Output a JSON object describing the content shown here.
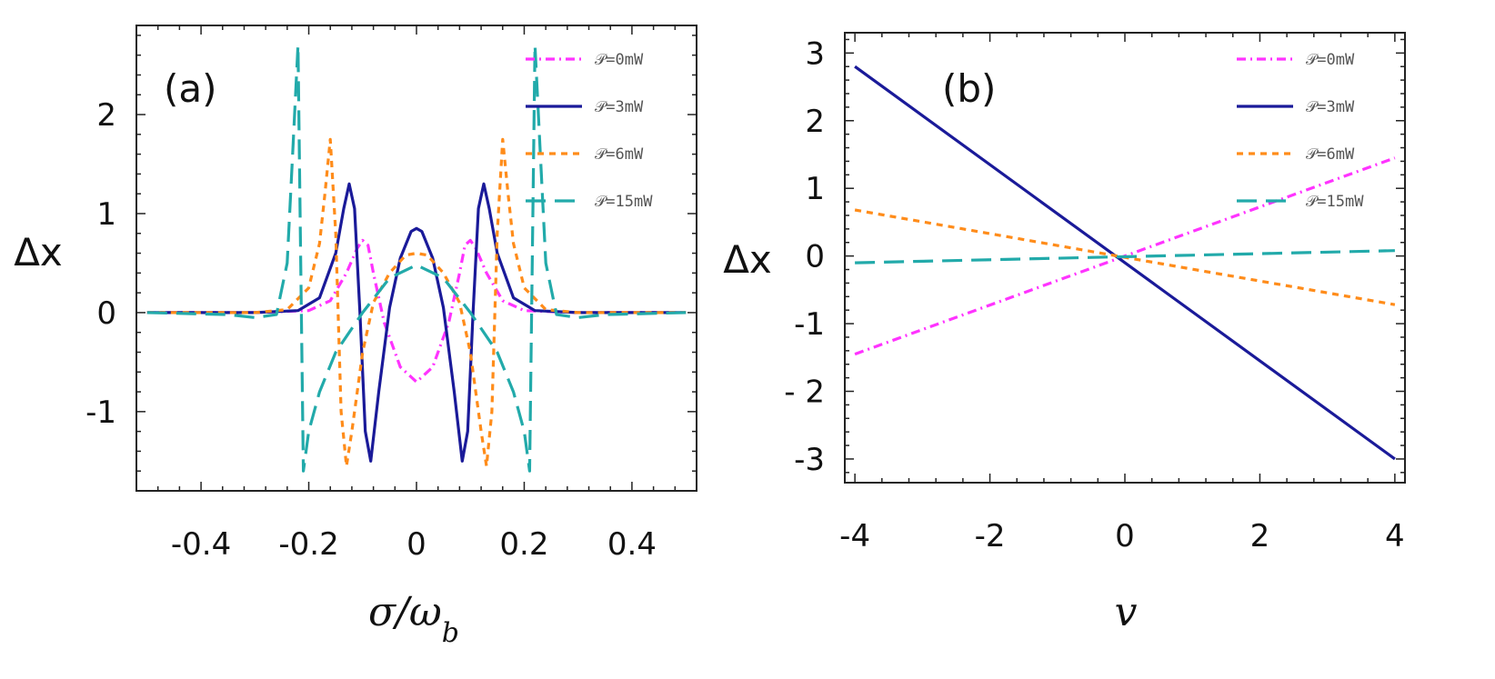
{
  "chart_data": [
    {
      "type": "line",
      "panel_label": "(a)",
      "xlabel": "σ/ω",
      "xlabel_sub": "b",
      "ylabel": "Δx",
      "xlim": [
        -0.52,
        0.52
      ],
      "ylim": [
        -1.8,
        2.9
      ],
      "xticks": [
        -0.4,
        -0.2,
        0,
        0.2,
        0.4
      ],
      "xtick_labels": [
        "-0.4",
        "-0.2",
        "0",
        "0.2",
        "0.4"
      ],
      "yticks": [
        -1,
        0,
        1,
        2
      ],
      "ytick_labels": [
        "-1",
        "0",
        "1",
        "2"
      ],
      "legend_position": "top-right",
      "series": [
        {
          "name": "𝒫=0mW",
          "color": "#ff33ff",
          "style": "dashdot",
          "x": [
            -0.5,
            -0.3,
            -0.2,
            -0.16,
            -0.13,
            -0.11,
            -0.1,
            -0.09,
            -0.08,
            -0.06,
            -0.03,
            0.0,
            0.03,
            0.06,
            0.08,
            0.09,
            0.1,
            0.11,
            0.13,
            0.16,
            0.2,
            0.3,
            0.5
          ],
          "y": [
            0.0,
            0.0,
            0.02,
            0.12,
            0.4,
            0.65,
            0.73,
            0.68,
            0.4,
            -0.1,
            -0.55,
            -0.7,
            -0.55,
            -0.1,
            0.4,
            0.68,
            0.73,
            0.65,
            0.4,
            0.12,
            0.02,
            0.0,
            0.0
          ]
        },
        {
          "name": "𝒫=3mW",
          "color": "#1a1a99",
          "style": "solid",
          "x": [
            -0.5,
            -0.3,
            -0.22,
            -0.18,
            -0.15,
            -0.135,
            -0.125,
            -0.115,
            -0.105,
            -0.095,
            -0.085,
            -0.07,
            -0.05,
            -0.03,
            -0.01,
            0.0,
            0.01,
            0.03,
            0.05,
            0.07,
            0.085,
            0.095,
            0.105,
            0.115,
            0.125,
            0.135,
            0.15,
            0.18,
            0.22,
            0.3,
            0.5
          ],
          "y": [
            0.0,
            0.0,
            0.02,
            0.15,
            0.6,
            1.05,
            1.3,
            1.05,
            0.0,
            -1.2,
            -1.5,
            -0.8,
            0.05,
            0.55,
            0.82,
            0.85,
            0.82,
            0.55,
            0.05,
            -0.8,
            -1.5,
            -1.2,
            0.0,
            1.05,
            1.3,
            1.05,
            0.6,
            0.15,
            0.02,
            0.0,
            0.0
          ]
        },
        {
          "name": "𝒫=6mW",
          "color": "#ff8c1a",
          "style": "dashed",
          "x": [
            -0.5,
            -0.3,
            -0.24,
            -0.2,
            -0.18,
            -0.17,
            -0.16,
            -0.15,
            -0.14,
            -0.13,
            -0.12,
            -0.1,
            -0.08,
            -0.05,
            -0.02,
            0.0,
            0.02,
            0.05,
            0.08,
            0.1,
            0.12,
            0.13,
            0.14,
            0.15,
            0.16,
            0.17,
            0.18,
            0.2,
            0.24,
            0.3,
            0.5
          ],
          "y": [
            0.0,
            0.0,
            0.03,
            0.25,
            0.7,
            1.2,
            1.75,
            0.8,
            -1.0,
            -1.55,
            -1.2,
            -0.4,
            0.1,
            0.4,
            0.58,
            0.6,
            0.58,
            0.4,
            0.1,
            -0.4,
            -1.2,
            -1.55,
            -1.0,
            0.8,
            1.75,
            1.2,
            0.7,
            0.25,
            0.03,
            0.0,
            0.0
          ]
        },
        {
          "name": "𝒫=15mW",
          "color": "#22aaaa",
          "style": "longdash",
          "x": [
            -0.5,
            -0.35,
            -0.3,
            -0.26,
            -0.24,
            -0.23,
            -0.22,
            -0.215,
            -0.21,
            -0.2,
            -0.18,
            -0.15,
            -0.1,
            -0.05,
            0.0,
            0.05,
            0.1,
            0.15,
            0.18,
            0.2,
            0.21,
            0.215,
            0.22,
            0.23,
            0.24,
            0.26,
            0.3,
            0.35,
            0.5
          ],
          "y": [
            0.0,
            -0.02,
            -0.05,
            -0.02,
            0.5,
            1.6,
            2.7,
            0.5,
            -1.6,
            -1.2,
            -0.8,
            -0.4,
            0.0,
            0.35,
            0.48,
            0.35,
            0.0,
            -0.4,
            -0.8,
            -1.2,
            -1.6,
            0.5,
            2.7,
            1.6,
            0.5,
            -0.02,
            -0.05,
            -0.02,
            0.0
          ]
        }
      ]
    },
    {
      "type": "line",
      "panel_label": "(b)",
      "xlabel": "v",
      "ylabel": "Δx",
      "xlim": [
        -4.15,
        4.15
      ],
      "ylim": [
        -3.35,
        3.3
      ],
      "xticks": [
        -4,
        -2,
        0,
        2,
        4
      ],
      "xtick_labels": [
        "-4",
        "-2",
        "0",
        "2",
        "4"
      ],
      "yticks": [
        3,
        2,
        1,
        0,
        -1,
        -2,
        -3
      ],
      "ytick_labels": [
        "3",
        "2",
        "1",
        "0",
        "-1",
        "- 2",
        "-3"
      ],
      "legend_position": "top-right",
      "series": [
        {
          "name": "𝒫=0mW",
          "color": "#ff33ff",
          "style": "dashdot",
          "x": [
            -4,
            4
          ],
          "y": [
            -1.45,
            1.45
          ]
        },
        {
          "name": "𝒫=3mW",
          "color": "#1a1a99",
          "style": "solid",
          "x": [
            -4,
            4
          ],
          "y": [
            2.8,
            -3.0
          ]
        },
        {
          "name": "𝒫=6mW",
          "color": "#ff8c1a",
          "style": "dashed",
          "x": [
            -4,
            4
          ],
          "y": [
            0.68,
            -0.72
          ]
        },
        {
          "name": "𝒫=15mW",
          "color": "#22aaaa",
          "style": "longdash",
          "x": [
            -4,
            4
          ],
          "y": [
            -0.1,
            0.08
          ]
        }
      ]
    }
  ]
}
